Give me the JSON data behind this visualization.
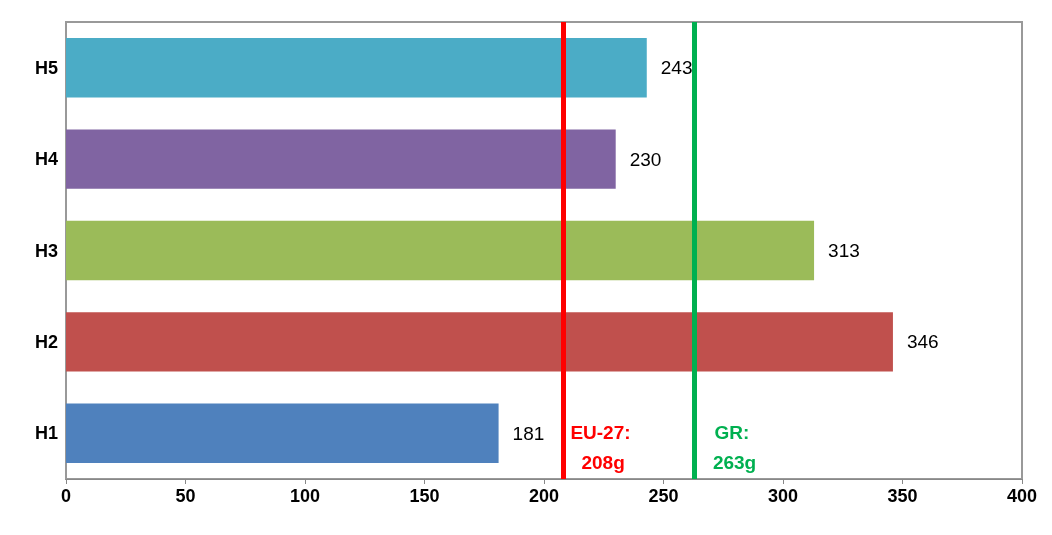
{
  "chart_data": {
    "type": "bar",
    "orientation": "horizontal",
    "categories": [
      "H5",
      "H4",
      "H3",
      "H2",
      "H1"
    ],
    "values": [
      243,
      230,
      313,
      346,
      181
    ],
    "colors": [
      "#4bacc6",
      "#8064a2",
      "#9bbb59",
      "#c0504d",
      "#4f81bd"
    ],
    "xlim": [
      0,
      400
    ],
    "xticks": [
      0,
      50,
      100,
      150,
      200,
      250,
      300,
      350,
      400
    ],
    "data_labels": true,
    "grid": false,
    "ref_lines": [
      {
        "axis": "x",
        "value": 208,
        "label": "EU-27: 208g",
        "color": "#ff0000",
        "line_style": "solid"
      },
      {
        "axis": "x",
        "value": 263,
        "label": "GR: 263g",
        "color": "#00b050",
        "line_style": "solid"
      }
    ]
  }
}
